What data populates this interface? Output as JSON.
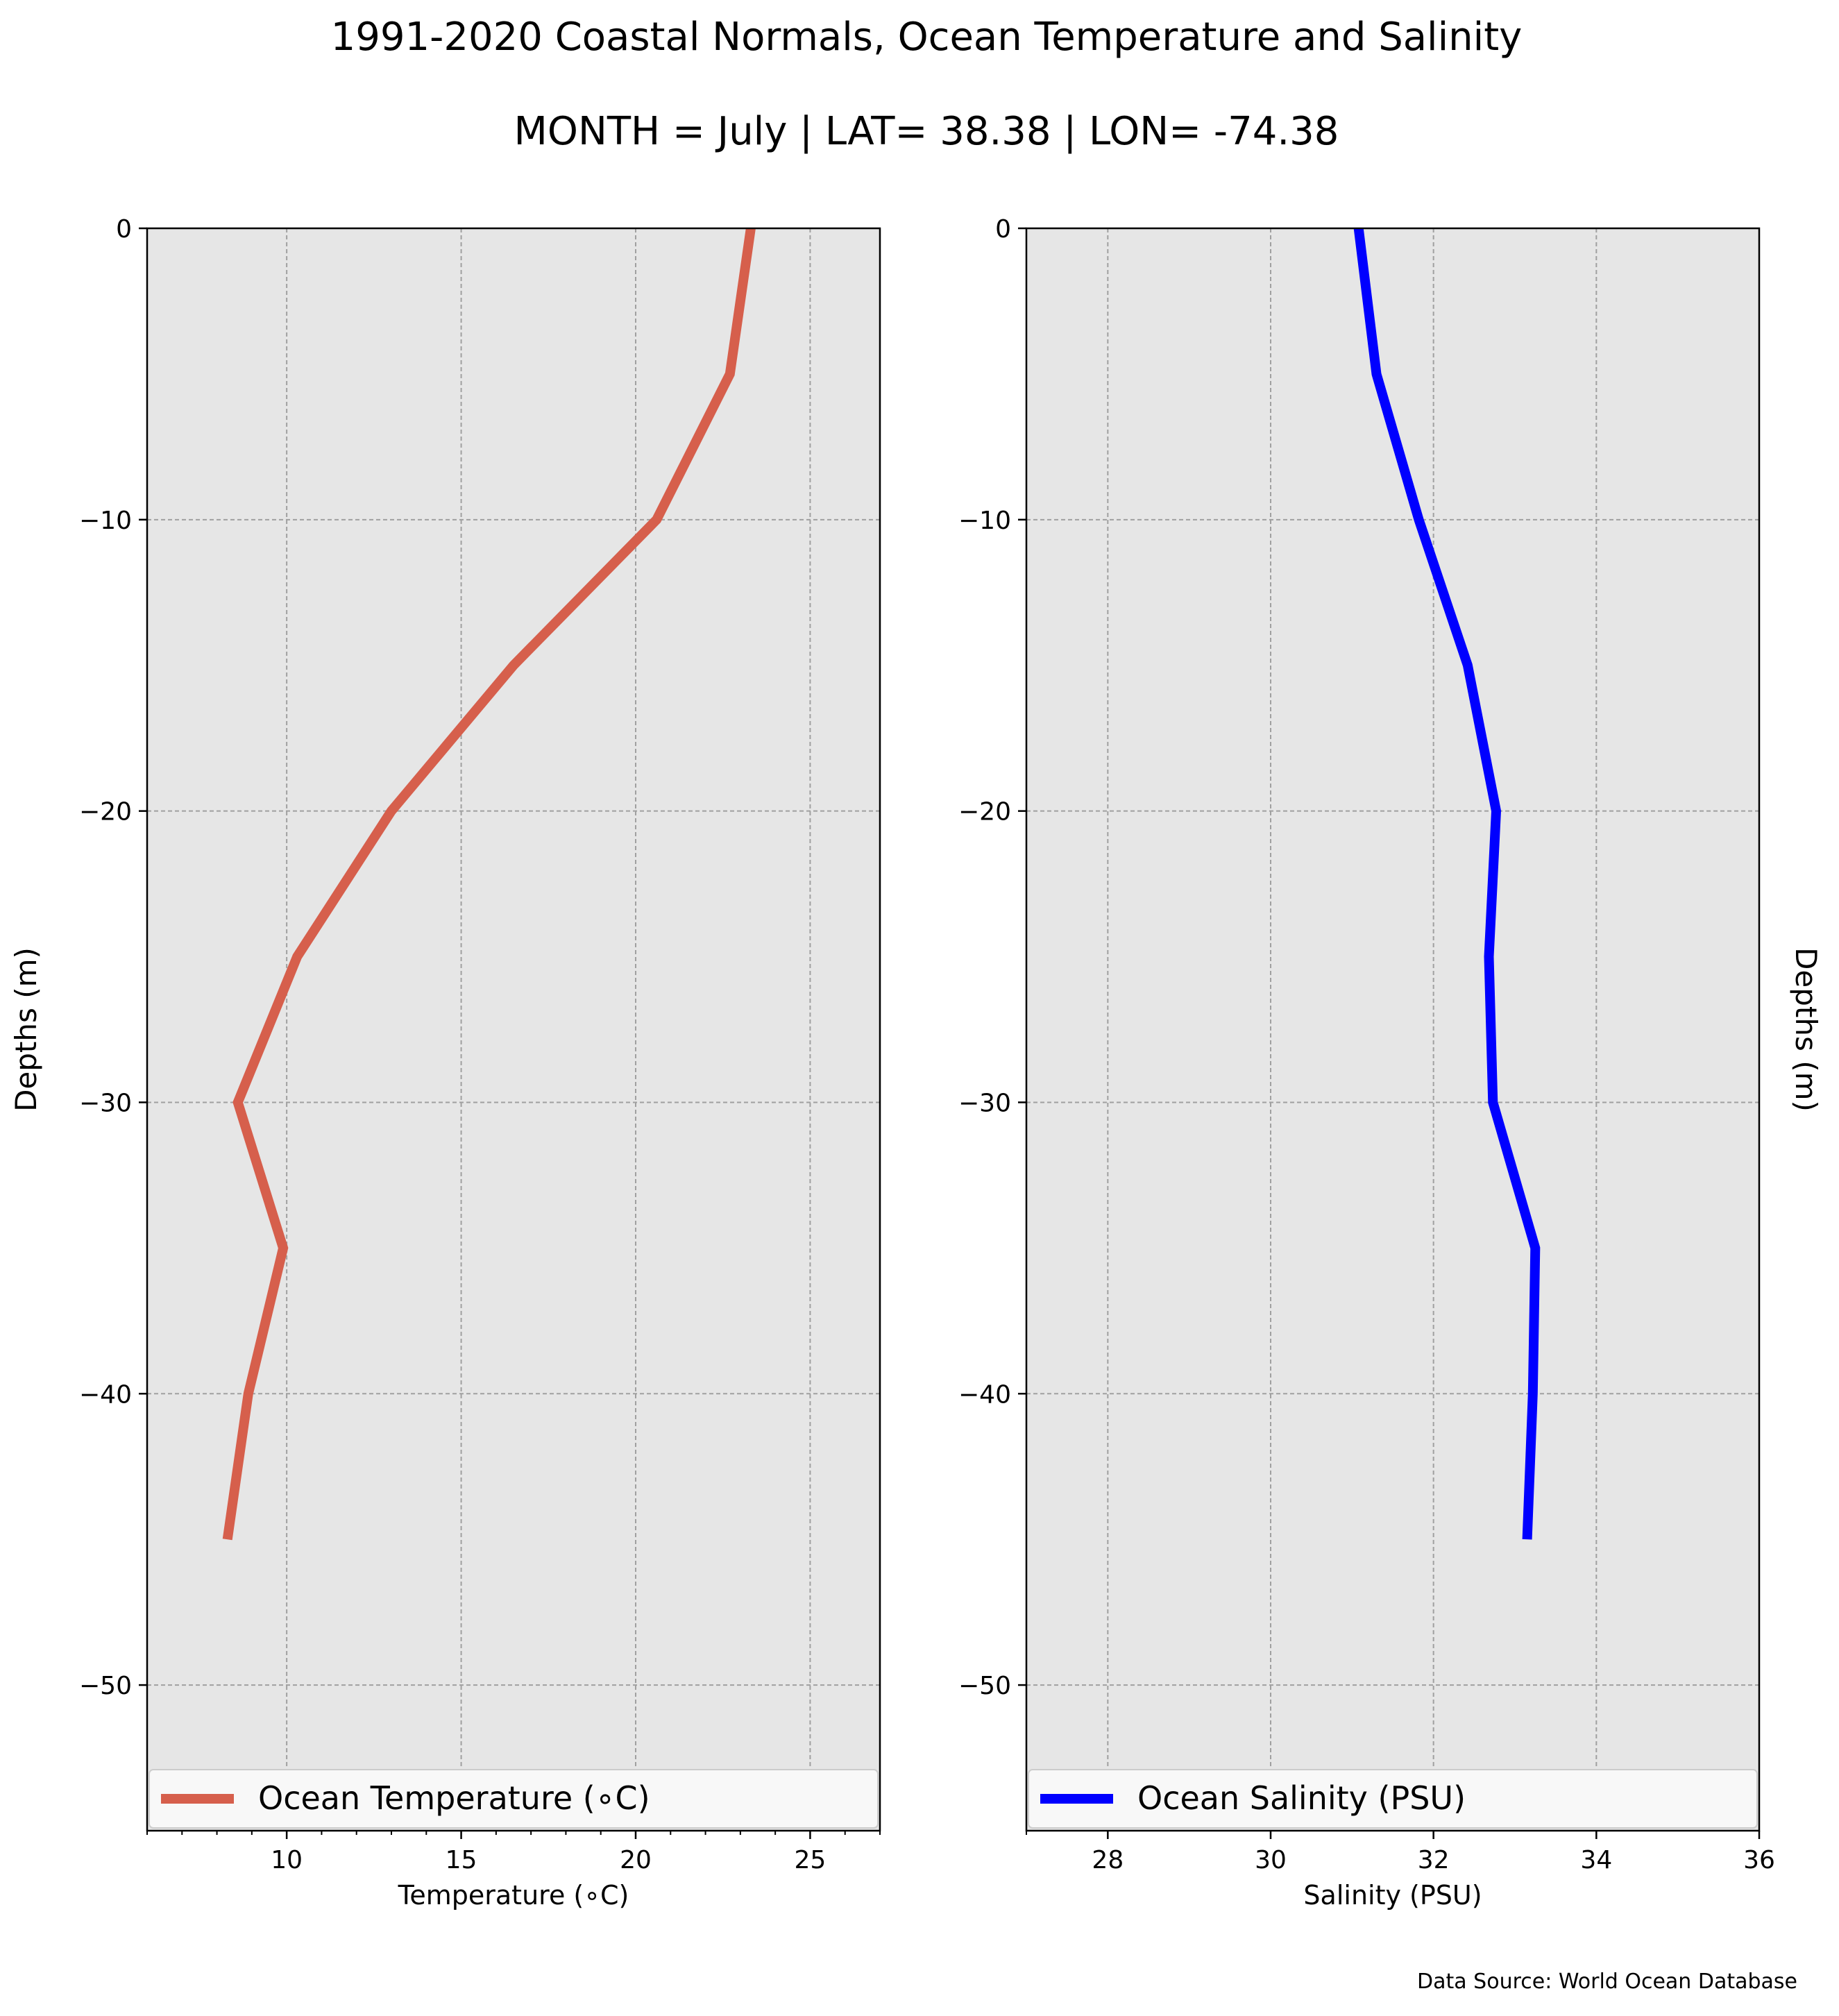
{
  "figure": {
    "title": "1991-2020 Coastal Normals, Ocean Temperature and Salinity",
    "subtitle": "MONTH = July | LAT= 38.38 | LON= -74.38",
    "source": "Data Source: World Ocean Database"
  },
  "chart_data": [
    {
      "type": "line",
      "orientation": "vertical-profile",
      "xlabel": "Temperature (∘C)",
      "ylabel": "Depths (m)",
      "xlim": [
        6,
        27
      ],
      "ylim": [
        -55,
        0
      ],
      "xticks": [
        10,
        15,
        20,
        25
      ],
      "xticks_minor": [
        6,
        7,
        8,
        9,
        11,
        12,
        13,
        14,
        16,
        17,
        18,
        19,
        21,
        22,
        23,
        24,
        26,
        27
      ],
      "yticks": [
        0,
        -10,
        -20,
        -30,
        -40,
        -50
      ],
      "ytick_labels": [
        "0",
        "−10",
        "−20",
        "−30",
        "−40",
        "−50"
      ],
      "xtick_labels": [
        "10",
        "15",
        "20",
        "25"
      ],
      "grid": true,
      "legend_position": "bottom",
      "series": [
        {
          "name": "Ocean Temperature (∘C)",
          "color": "#d65f4c",
          "x": [
            23.3,
            22.7,
            20.6,
            16.5,
            13.0,
            10.3,
            8.6,
            9.9,
            8.9,
            8.3
          ],
          "y": [
            0,
            -5,
            -10,
            -15,
            -20,
            -25,
            -30,
            -35,
            -40,
            -45
          ]
        }
      ]
    },
    {
      "type": "line",
      "orientation": "vertical-profile",
      "xlabel": "Salinity (PSU)",
      "ylabel": "Depths (m)",
      "ylabel_side": "right",
      "xlim": [
        27,
        36
      ],
      "ylim": [
        -55,
        0
      ],
      "xticks": [
        28,
        30,
        32,
        34,
        36
      ],
      "xticks_minor": [
        27
      ],
      "yticks": [
        0,
        -10,
        -20,
        -30,
        -40,
        -50
      ],
      "ytick_labels": [
        "0",
        "−10",
        "−20",
        "−30",
        "−40",
        "−50"
      ],
      "xtick_labels": [
        "28",
        "30",
        "32",
        "34",
        "36"
      ],
      "grid": true,
      "legend_position": "bottom",
      "series": [
        {
          "name": "Ocean Salinity (PSU)",
          "color": "#0000ff",
          "x": [
            31.08,
            31.3,
            31.82,
            32.42,
            32.77,
            32.68,
            32.73,
            33.25,
            33.22,
            33.15
          ],
          "y": [
            0,
            -5,
            -10,
            -15,
            -20,
            -25,
            -30,
            -35,
            -40,
            -45
          ]
        }
      ]
    }
  ]
}
